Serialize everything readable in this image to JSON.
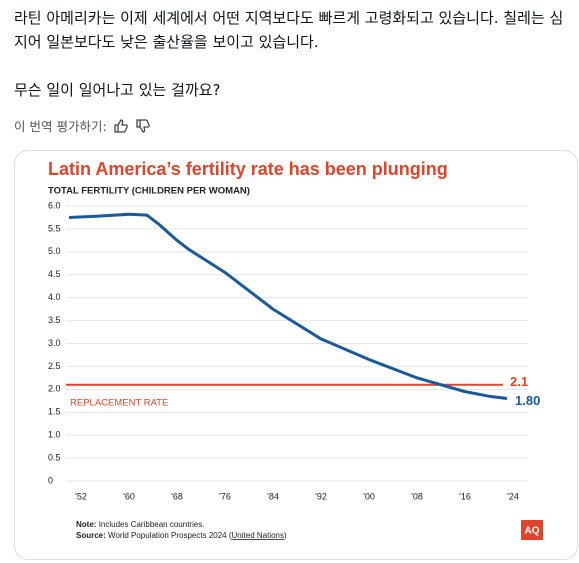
{
  "post": {
    "paragraphs": [
      "라틴 아메리카는 이제 세계에서 어떤 지역보다도 빠르게 고령화되고 있습니다. 칠레는 심지어 일본보다도 낮은 출산율을 보이고 있습니다.",
      "무슨 일이 일어나고 있는 걸까요?"
    ],
    "translate_label": "이 번역 평가하기:"
  },
  "chart_data": {
    "type": "line",
    "title": "Latin America’s fertility rate has been plunging",
    "subtitle": "TOTAL FERTILITY (CHILDREN PER WOMAN)",
    "x": [
      1950,
      1955,
      1960,
      1963,
      1965,
      1968,
      1970,
      1976,
      1984,
      1992,
      2000,
      2008,
      2016,
      2020,
      2023
    ],
    "series": [
      {
        "name": "Latin America",
        "color": "#1a5a9a",
        "values": [
          5.75,
          5.78,
          5.82,
          5.8,
          5.6,
          5.25,
          5.05,
          4.55,
          3.75,
          3.1,
          2.65,
          2.25,
          1.95,
          1.85,
          1.8
        ],
        "value_labels": [
          null,
          null,
          null,
          null,
          null,
          null,
          null,
          null,
          null,
          null,
          null,
          null,
          null,
          null,
          "1.80"
        ]
      }
    ],
    "reference_line": {
      "value": 2.1,
      "label": "REPLACEMENT RATE",
      "color": "#e0452b"
    },
    "xlim": [
      1948,
      2028
    ],
    "xticks": [
      {
        "value": 1952,
        "label": "'52"
      },
      {
        "value": 1960,
        "label": "'60"
      },
      {
        "value": 1968,
        "label": "'68"
      },
      {
        "value": 1976,
        "label": "'76"
      },
      {
        "value": 1984,
        "label": "'84"
      },
      {
        "value": 1992,
        "label": "'92"
      },
      {
        "value": 2000,
        "label": "'00"
      },
      {
        "value": 2008,
        "label": "'08"
      },
      {
        "value": 2016,
        "label": "'16"
      },
      {
        "value": 2024,
        "label": "'24"
      }
    ],
    "ylim": [
      0,
      6
    ],
    "yticks": [
      0,
      0.5,
      {
        "value": 1,
        "label": "1.0"
      },
      1.5,
      {
        "value": 2,
        "label": "2.0"
      },
      2.5,
      {
        "value": 3,
        "label": "3.0"
      },
      3.5,
      {
        "value": 4,
        "label": "4.0"
      },
      4.5,
      {
        "value": 5,
        "label": "5.0"
      },
      5.5,
      {
        "value": 6,
        "label": "6.0"
      }
    ],
    "grid": true,
    "note": {
      "label": "Note:",
      "text": "Includes Caribbean countries."
    },
    "source": {
      "label": "Source:",
      "text": "World Population Prospects 2024 (",
      "link": "United Nations",
      "end": ")"
    },
    "logo": "AQ"
  }
}
